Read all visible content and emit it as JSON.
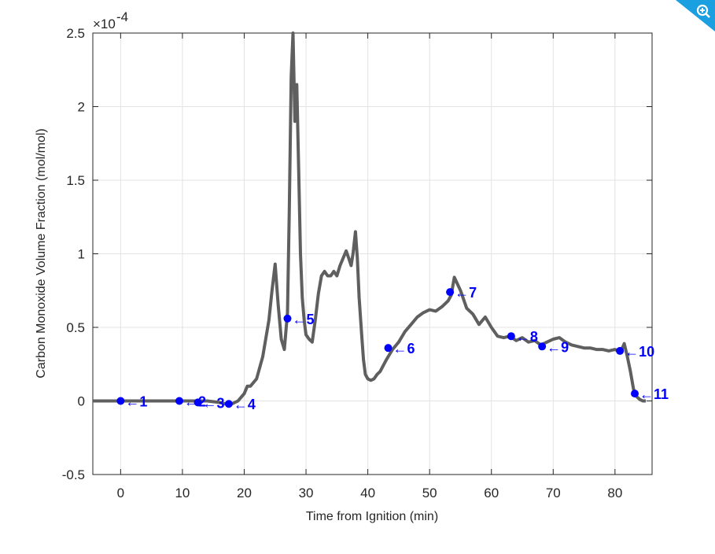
{
  "chart_data": {
    "type": "line",
    "xlabel": "Time from Ignition (min)",
    "ylabel": "Carbon Monoxide Volume Fraction (mol/mol)",
    "exponent_label": "×10",
    "exponent_power": "-4",
    "xlim": [
      -4.5,
      86
    ],
    "ylim": [
      -0.5,
      2.5
    ],
    "y_scale": 0.0001,
    "xticks": [
      "0",
      "10",
      "20",
      "30",
      "40",
      "50",
      "60",
      "70",
      "80"
    ],
    "xtick_values": [
      0,
      10,
      20,
      30,
      40,
      50,
      60,
      70,
      80
    ],
    "yticks": [
      "-0.5",
      "0",
      "0.5",
      "1",
      "1.5",
      "2",
      "2.5"
    ],
    "ytick_values": [
      -0.5,
      0,
      0.5,
      1,
      1.5,
      2,
      2.5
    ],
    "grid": true,
    "series": [
      {
        "color": "#5f5f5f",
        "x": [
          -4.5,
          -2,
          0,
          2,
          4,
          6,
          8,
          10,
          12,
          14,
          16,
          17,
          18,
          19,
          20,
          20.5,
          21,
          22,
          23,
          24,
          24.5,
          25,
          25.5,
          26,
          26.5,
          27,
          27.3,
          27.6,
          27.9,
          28.2,
          28.5,
          28.8,
          29.1,
          29.4,
          29.7,
          30,
          30.5,
          31,
          31.5,
          32,
          32.5,
          33,
          33.5,
          34,
          34.5,
          35,
          35.5,
          36,
          36.5,
          37,
          37.3,
          37.6,
          38,
          38.3,
          38.6,
          39,
          39.3,
          39.6,
          40,
          40.5,
          41,
          41.5,
          42,
          43,
          44,
          45,
          46,
          47,
          48,
          49,
          50,
          51,
          52,
          53,
          53.5,
          54,
          55,
          56,
          57,
          58,
          59,
          60,
          61,
          62,
          63,
          64,
          65,
          66,
          67,
          68,
          69,
          70,
          71,
          72,
          73,
          74,
          75,
          76,
          77,
          78,
          79,
          80,
          80.5,
          81,
          81.5,
          82,
          82.5,
          83,
          83.5,
          84,
          84.5,
          85
        ],
        "y": [
          0,
          0,
          0,
          0,
          0,
          0,
          0,
          0,
          0,
          0,
          -0.01,
          -0.02,
          -0.02,
          0,
          0.05,
          0.1,
          0.1,
          0.15,
          0.3,
          0.55,
          0.75,
          0.93,
          0.65,
          0.42,
          0.35,
          0.6,
          1.3,
          2.2,
          2.5,
          1.9,
          2.15,
          1.6,
          1.0,
          0.7,
          0.55,
          0.45,
          0.42,
          0.4,
          0.55,
          0.73,
          0.85,
          0.88,
          0.85,
          0.85,
          0.88,
          0.85,
          0.92,
          0.97,
          1.02,
          0.96,
          0.92,
          1.0,
          1.15,
          0.97,
          0.7,
          0.45,
          0.28,
          0.18,
          0.15,
          0.14,
          0.15,
          0.18,
          0.2,
          0.28,
          0.35,
          0.4,
          0.47,
          0.52,
          0.57,
          0.6,
          0.62,
          0.61,
          0.64,
          0.68,
          0.72,
          0.84,
          0.75,
          0.63,
          0.59,
          0.52,
          0.57,
          0.5,
          0.44,
          0.43,
          0.44,
          0.41,
          0.43,
          0.4,
          0.41,
          0.38,
          0.4,
          0.42,
          0.43,
          0.4,
          0.38,
          0.37,
          0.36,
          0.36,
          0.35,
          0.35,
          0.34,
          0.35,
          0.34,
          0.34,
          0.39,
          0.3,
          0.2,
          0.08,
          0.03,
          0.01,
          0,
          0
        ]
      }
    ],
    "markers": [
      {
        "label": "1",
        "x": 0,
        "y": 0
      },
      {
        "label": "2",
        "x": 9.5,
        "y": 0
      },
      {
        "label": "3",
        "x": 12.5,
        "y": -0.01
      },
      {
        "label": "4",
        "x": 17.5,
        "y": -0.02
      },
      {
        "label": "5",
        "x": 27,
        "y": 0.56
      },
      {
        "label": "6",
        "x": 43.3,
        "y": 0.36
      },
      {
        "label": "7",
        "x": 53.3,
        "y": 0.74
      },
      {
        "label": "8",
        "x": 63.2,
        "y": 0.44
      },
      {
        "label": "9",
        "x": 68.2,
        "y": 0.37
      },
      {
        "label": "10",
        "x": 80.8,
        "y": 0.34
      },
      {
        "label": "11",
        "x": 83.2,
        "y": 0.05
      }
    ],
    "annotation_prefix": "←"
  },
  "badge": {
    "icon": "zoom-in-icon",
    "color": "#1a9fe0"
  }
}
